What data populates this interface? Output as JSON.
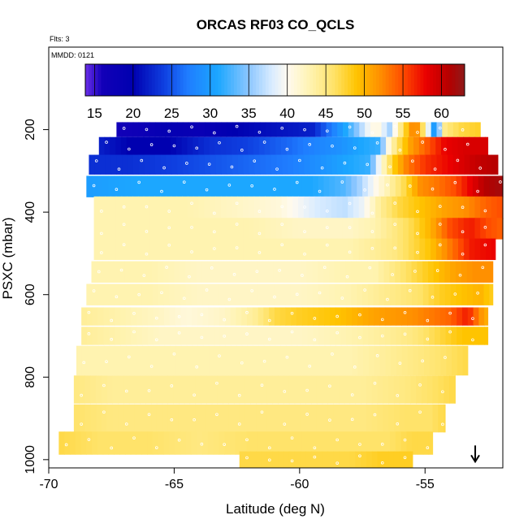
{
  "chart_data": {
    "type": "heatmap",
    "title": "ORCAS RF03 CO_QCLS",
    "flights_label": "Flts: 3",
    "date_label": "MMDD: 0121",
    "xlabel": "Latitude (deg N)",
    "ylabel": "PSXC (mbar)",
    "xlim": [
      -70,
      -51.9
    ],
    "ylim_inverted": [
      1020,
      0
    ],
    "x_ticks": [
      -70,
      -65,
      -60,
      -55
    ],
    "x_tick_labels": [
      "-70",
      "-65",
      "-60",
      "-55"
    ],
    "y_ticks": [
      200,
      400,
      600,
      800,
      1000
    ],
    "y_tick_labels": [
      "200",
      "400",
      "600",
      "800",
      "1000"
    ],
    "colorbar": {
      "min": 13.8,
      "max": 63,
      "ticks": [
        15,
        20,
        25,
        30,
        35,
        40,
        45,
        50,
        55,
        60
      ],
      "tick_labels": [
        "15",
        "20",
        "25",
        "30",
        "35",
        "40",
        "45",
        "50",
        "55",
        "60"
      ],
      "palette_stops": [
        {
          "value": 13.8,
          "color": "#6a2ee8"
        },
        {
          "value": 16,
          "color": "#1200b8"
        },
        {
          "value": 20,
          "color": "#0000b0"
        },
        {
          "value": 24,
          "color": "#0f3fe0"
        },
        {
          "value": 27,
          "color": "#1f7cff"
        },
        {
          "value": 31,
          "color": "#1ca7ff"
        },
        {
          "value": 35,
          "color": "#8cc6ff"
        },
        {
          "value": 38,
          "color": "#d9ecff"
        },
        {
          "value": 40,
          "color": "#fffaf0"
        },
        {
          "value": 43,
          "color": "#fff3b0"
        },
        {
          "value": 46,
          "color": "#ffe36a"
        },
        {
          "value": 49,
          "color": "#ffc400"
        },
        {
          "value": 52,
          "color": "#ff9000"
        },
        {
          "value": 55,
          "color": "#ff4c00"
        },
        {
          "value": 58,
          "color": "#ea0000"
        },
        {
          "value": 61,
          "color": "#b40000"
        },
        {
          "value": 63,
          "color": "#8f1a1a"
        }
      ]
    },
    "layers": [
      {
        "p": 200,
        "half": 18,
        "xmin": -67.3,
        "xmax": -52.8,
        "profile": [
          [
            -67.3,
            16
          ],
          [
            -66.4,
            17
          ],
          [
            -65.4,
            19
          ],
          [
            -63.9,
            18
          ],
          [
            -62.6,
            20
          ],
          [
            -61.2,
            21
          ],
          [
            -59.5,
            22
          ],
          [
            -58.3,
            30
          ],
          [
            -57.8,
            34
          ],
          [
            -57.5,
            37
          ],
          [
            -57.2,
            40
          ],
          [
            -56.9,
            41
          ],
          [
            -56.4,
            36
          ],
          [
            -55.9,
            46
          ],
          [
            -55.4,
            54
          ],
          [
            -55.0,
            44
          ],
          [
            -54.6,
            28
          ],
          [
            -54.2,
            45
          ],
          [
            -53.6,
            47
          ],
          [
            -52.8,
            48
          ]
        ]
      },
      {
        "p": 240,
        "half": 22,
        "xmin": -68.0,
        "xmax": -52.5,
        "profile": [
          [
            -68.0,
            22
          ],
          [
            -66.8,
            20
          ],
          [
            -65.2,
            20
          ],
          [
            -63.6,
            23
          ],
          [
            -62.1,
            24
          ],
          [
            -60.5,
            26
          ],
          [
            -59.2,
            28
          ],
          [
            -58.4,
            29
          ],
          [
            -57.5,
            31
          ],
          [
            -56.8,
            32
          ],
          [
            -56.5,
            40
          ],
          [
            -56.1,
            46
          ],
          [
            -55.6,
            51
          ],
          [
            -55.0,
            54
          ],
          [
            -54.2,
            58
          ],
          [
            -53.4,
            59
          ],
          [
            -52.5,
            59
          ]
        ]
      },
      {
        "p": 285,
        "half": 24,
        "xmin": -68.4,
        "xmax": -52.1,
        "profile": [
          [
            -68.4,
            23
          ],
          [
            -66.8,
            23
          ],
          [
            -65.0,
            24
          ],
          [
            -63.5,
            25
          ],
          [
            -62.0,
            26
          ],
          [
            -60.5,
            27
          ],
          [
            -59.2,
            29
          ],
          [
            -58.0,
            31
          ],
          [
            -57.2,
            32
          ],
          [
            -56.8,
            40
          ],
          [
            -56.3,
            48
          ],
          [
            -55.7,
            53
          ],
          [
            -55.0,
            56
          ],
          [
            -54.0,
            58
          ],
          [
            -53.0,
            60
          ],
          [
            -52.1,
            61
          ]
        ]
      },
      {
        "p": 338,
        "half": 26,
        "xmin": -68.5,
        "xmax": -51.9,
        "profile": [
          [
            -68.5,
            30
          ],
          [
            -66.5,
            31
          ],
          [
            -64.5,
            31
          ],
          [
            -62.5,
            31
          ],
          [
            -60.8,
            31
          ],
          [
            -59.5,
            31
          ],
          [
            -58.2,
            33
          ],
          [
            -57.6,
            36
          ],
          [
            -57.0,
            40
          ],
          [
            -56.3,
            44
          ],
          [
            -55.8,
            47
          ],
          [
            -55.2,
            52
          ],
          [
            -54.6,
            53
          ],
          [
            -53.8,
            55
          ],
          [
            -53.2,
            58
          ],
          [
            -52.6,
            61
          ],
          [
            -51.9,
            62
          ]
        ]
      },
      {
        "p": 390,
        "half": 28,
        "xmin": -68.2,
        "xmax": -51.9,
        "profile": [
          [
            -68.2,
            43
          ],
          [
            -66.5,
            43
          ],
          [
            -64.5,
            43
          ],
          [
            -62.5,
            42
          ],
          [
            -60.8,
            41
          ],
          [
            -59.3,
            38
          ],
          [
            -58.2,
            37
          ],
          [
            -57.5,
            39
          ],
          [
            -56.8,
            44
          ],
          [
            -56.1,
            47
          ],
          [
            -55.2,
            49
          ],
          [
            -54.2,
            51
          ],
          [
            -53.4,
            52
          ],
          [
            -52.6,
            54
          ],
          [
            -51.9,
            55
          ]
        ]
      },
      {
        "p": 440,
        "half": 26,
        "xmin": -68.2,
        "xmax": -51.9,
        "profile": [
          [
            -68.2,
            43
          ],
          [
            -66.0,
            43
          ],
          [
            -64.0,
            43
          ],
          [
            -62.0,
            43
          ],
          [
            -60.0,
            42
          ],
          [
            -58.0,
            42
          ],
          [
            -57.0,
            43
          ],
          [
            -56.2,
            45
          ],
          [
            -55.5,
            47
          ],
          [
            -54.8,
            50
          ],
          [
            -54.0,
            55
          ],
          [
            -53.2,
            57
          ],
          [
            -52.5,
            55
          ],
          [
            -51.9,
            54
          ]
        ]
      },
      {
        "p": 490,
        "half": 26,
        "xmin": -68.2,
        "xmax": -52.2,
        "profile": [
          [
            -68.2,
            43
          ],
          [
            -66.0,
            43
          ],
          [
            -64.0,
            43
          ],
          [
            -62.0,
            43
          ],
          [
            -60.0,
            43
          ],
          [
            -58.0,
            43
          ],
          [
            -57.0,
            44
          ],
          [
            -56.2,
            45
          ],
          [
            -55.5,
            47
          ],
          [
            -54.8,
            49
          ],
          [
            -54.0,
            53
          ],
          [
            -53.2,
            57
          ],
          [
            -52.2,
            58
          ]
        ]
      },
      {
        "p": 545,
        "half": 26,
        "xmin": -68.3,
        "xmax": -52.3,
        "profile": [
          [
            -68.3,
            43
          ],
          [
            -66.0,
            43
          ],
          [
            -64.0,
            42
          ],
          [
            -62.0,
            42
          ],
          [
            -60.0,
            42
          ],
          [
            -58.0,
            43
          ],
          [
            -57.0,
            43
          ],
          [
            -56.2,
            45
          ],
          [
            -55.4,
            47
          ],
          [
            -54.6,
            49
          ],
          [
            -53.8,
            51
          ],
          [
            -53.0,
            52
          ],
          [
            -52.3,
            52
          ]
        ]
      },
      {
        "p": 600,
        "half": 26,
        "xmin": -68.5,
        "xmax": -52.3,
        "profile": [
          [
            -68.5,
            43
          ],
          [
            -66.0,
            43
          ],
          [
            -64.0,
            42
          ],
          [
            -62.0,
            42
          ],
          [
            -60.0,
            42
          ],
          [
            -58.0,
            43
          ],
          [
            -57.0,
            44
          ],
          [
            -56.0,
            45
          ],
          [
            -55.2,
            46
          ],
          [
            -54.4,
            48
          ],
          [
            -53.6,
            49
          ],
          [
            -52.8,
            50
          ],
          [
            -52.3,
            48
          ]
        ]
      },
      {
        "p": 653,
        "half": 22,
        "xmin": -68.7,
        "xmax": -52.5,
        "profile": [
          [
            -68.7,
            44
          ],
          [
            -67.0,
            43
          ],
          [
            -65.5,
            42
          ],
          [
            -64.5,
            41
          ],
          [
            -63.0,
            42
          ],
          [
            -61.8,
            44
          ],
          [
            -61.0,
            47
          ],
          [
            -60.0,
            48
          ],
          [
            -58.5,
            49
          ],
          [
            -57.0,
            51
          ],
          [
            -55.5,
            52
          ],
          [
            -54.0,
            54
          ],
          [
            -53.3,
            57
          ],
          [
            -52.8,
            52
          ],
          [
            -52.5,
            50
          ]
        ]
      },
      {
        "p": 700,
        "half": 22,
        "xmin": -68.7,
        "xmax": -52.5,
        "profile": [
          [
            -68.7,
            44
          ],
          [
            -67.0,
            43
          ],
          [
            -65.5,
            42
          ],
          [
            -64.0,
            42
          ],
          [
            -62.0,
            42
          ],
          [
            -60.0,
            42
          ],
          [
            -58.0,
            43
          ],
          [
            -56.5,
            44
          ],
          [
            -55.5,
            45
          ],
          [
            -54.5,
            47
          ],
          [
            -53.5,
            49
          ],
          [
            -52.5,
            49
          ]
        ]
      },
      {
        "p": 760,
        "half": 36,
        "xmin": -68.9,
        "xmax": -53.3,
        "profile": [
          [
            -68.9,
            43
          ],
          [
            -66.5,
            43
          ],
          [
            -64.0,
            43
          ],
          [
            -62.0,
            43
          ],
          [
            -60.0,
            43
          ],
          [
            -58.0,
            43
          ],
          [
            -56.5,
            44
          ],
          [
            -55.2,
            45
          ],
          [
            -54.2,
            46
          ],
          [
            -53.3,
            47
          ]
        ]
      },
      {
        "p": 830,
        "half": 34,
        "xmin": -69.0,
        "xmax": -53.8,
        "profile": [
          [
            -69.0,
            45
          ],
          [
            -67.5,
            44
          ],
          [
            -65.5,
            44
          ],
          [
            -63.5,
            44
          ],
          [
            -61.5,
            44
          ],
          [
            -59.5,
            44
          ],
          [
            -57.5,
            44
          ],
          [
            -55.8,
            45
          ],
          [
            -54.8,
            46
          ],
          [
            -53.8,
            47
          ]
        ]
      },
      {
        "p": 900,
        "half": 34,
        "xmin": -69.0,
        "xmax": -54.2,
        "profile": [
          [
            -69.0,
            46
          ],
          [
            -67.5,
            45
          ],
          [
            -65.5,
            45
          ],
          [
            -63.5,
            45
          ],
          [
            -61.5,
            45
          ],
          [
            -59.5,
            45
          ],
          [
            -57.5,
            45
          ],
          [
            -55.8,
            46
          ],
          [
            -54.8,
            46
          ],
          [
            -54.2,
            47
          ]
        ]
      },
      {
        "p": 960,
        "half": 28,
        "xmin": -69.6,
        "xmax": -54.7,
        "profile": [
          [
            -69.6,
            47
          ],
          [
            -68.0,
            46
          ],
          [
            -66.0,
            46
          ],
          [
            -64.0,
            45
          ],
          [
            -62.0,
            46
          ],
          [
            -60.0,
            46
          ],
          [
            -58.0,
            46
          ],
          [
            -56.5,
            46
          ],
          [
            -55.5,
            47
          ],
          [
            -54.7,
            47
          ]
        ]
      },
      {
        "p": 1000,
        "half": 20,
        "xmin": -62.4,
        "xmax": -55.5,
        "profile": [
          [
            -62.4,
            47
          ],
          [
            -61.0,
            47
          ],
          [
            -59.5,
            47
          ],
          [
            -58.0,
            47
          ],
          [
            -56.8,
            48
          ],
          [
            -55.5,
            48
          ]
        ]
      }
    ],
    "marker": {
      "type": "arrow",
      "x": -53.0,
      "p": 1005,
      "color": "#000000"
    }
  }
}
